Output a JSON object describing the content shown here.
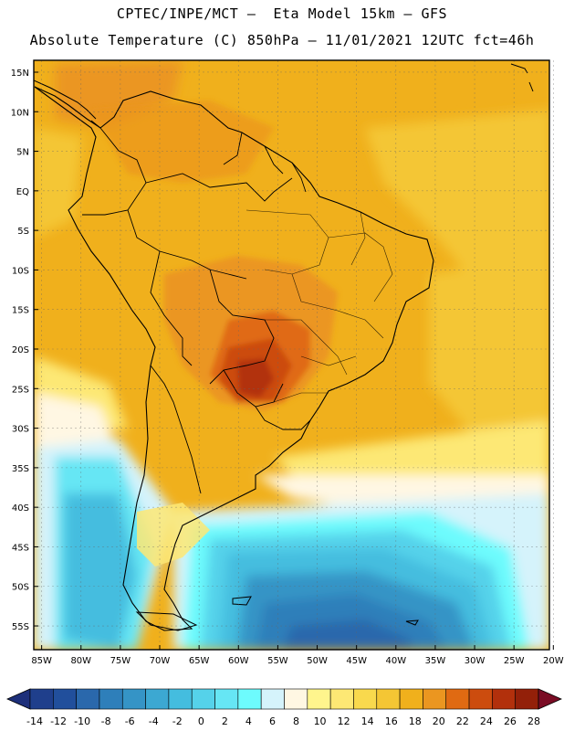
{
  "header": {
    "title_line1": "CPTEC/INPE/MCT –  Eta Model 15km – GFS",
    "title_line2": "Absolute Temperature (C) 850hPa – 11/01/2021 12UTC fct=46h"
  },
  "map": {
    "lat_labels": [
      "15N",
      "10N",
      "5N",
      "EQ",
      "5S",
      "10S",
      "15S",
      "20S",
      "25S",
      "30S",
      "35S",
      "40S",
      "45S",
      "50S",
      "55S"
    ],
    "lon_labels": [
      "85W",
      "80W",
      "75W",
      "70W",
      "65W",
      "60W",
      "55W",
      "50W",
      "45W",
      "40W",
      "35W",
      "30W",
      "25W",
      "20W"
    ],
    "lat_range": [
      16.5,
      -58
    ],
    "lon_range": [
      -86,
      -20.5
    ]
  },
  "legend": {
    "tick_labels": [
      "-14",
      "-12",
      "-10",
      "-8",
      "-6",
      "-4",
      "-2",
      "0",
      "2",
      "4",
      "6",
      "8",
      "10",
      "12",
      "14",
      "16",
      "18",
      "20",
      "22",
      "24",
      "26",
      "28"
    ],
    "bins": [
      {
        "color": "#1f3f8c"
      },
      {
        "color": "#214f9c"
      },
      {
        "color": "#2a68ac"
      },
      {
        "color": "#2e7fba"
      },
      {
        "color": "#3594c6"
      },
      {
        "color": "#3ca8d2"
      },
      {
        "color": "#44bddf"
      },
      {
        "color": "#55d2ea"
      },
      {
        "color": "#66e6f4"
      },
      {
        "color": "#6dfbfd"
      },
      {
        "color": "#d5f3fb"
      },
      {
        "color": "#fff7e3"
      },
      {
        "color": "#fff58d"
      },
      {
        "color": "#fde874"
      },
      {
        "color": "#f9d94d"
      },
      {
        "color": "#f4c634"
      },
      {
        "color": "#f0b01c"
      },
      {
        "color": "#eb9620"
      },
      {
        "color": "#e06a12"
      },
      {
        "color": "#cc4c0e"
      },
      {
        "color": "#b2300c"
      },
      {
        "color": "#932009"
      }
    ],
    "under_color": "#1d2f7a",
    "over_color": "#7a0c24"
  }
}
